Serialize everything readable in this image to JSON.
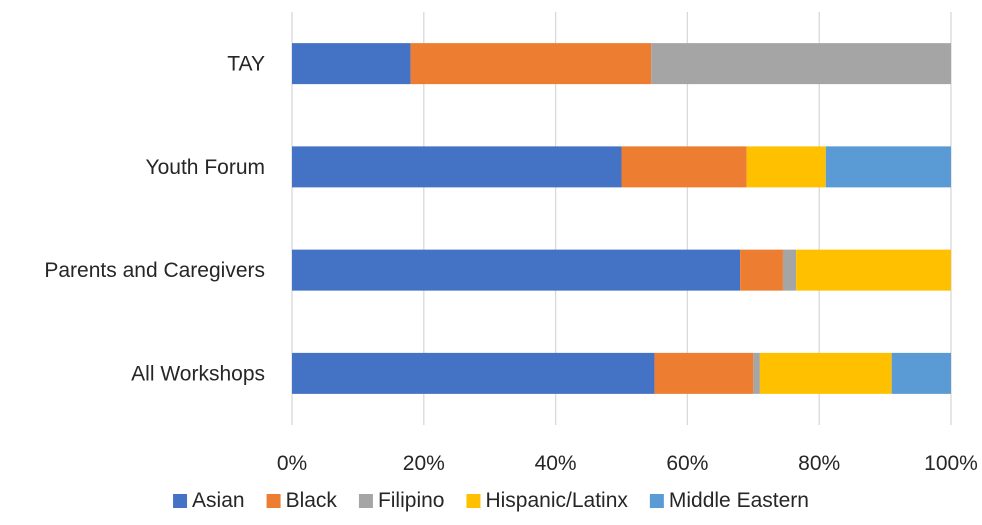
{
  "chart_data": {
    "type": "bar",
    "orientation": "horizontal",
    "stacked": "percent",
    "categories": [
      "All Workshops",
      "Parents and Caregivers",
      "Youth Forum",
      "TAY"
    ],
    "series": [
      {
        "name": "Asian",
        "color": "#4472C4",
        "values": [
          55,
          68,
          50,
          18
        ]
      },
      {
        "name": "Black",
        "color": "#ED7D31",
        "values": [
          15,
          6.5,
          19,
          36.5
        ]
      },
      {
        "name": "Filipino",
        "color": "#A5A5A5",
        "values": [
          1,
          2,
          0,
          45.5
        ]
      },
      {
        "name": "Hispanic/Latinx",
        "color": "#FFC000",
        "values": [
          20,
          23.5,
          12,
          0
        ]
      },
      {
        "name": "Middle Eastern",
        "color": "#5B9BD5",
        "values": [
          9,
          0,
          19,
          0
        ]
      }
    ],
    "xlim": [
      0,
      100
    ],
    "x_ticks": [
      "0%",
      "20%",
      "40%",
      "60%",
      "80%",
      "100%"
    ],
    "grid": "vertical",
    "legend_position": "bottom"
  }
}
